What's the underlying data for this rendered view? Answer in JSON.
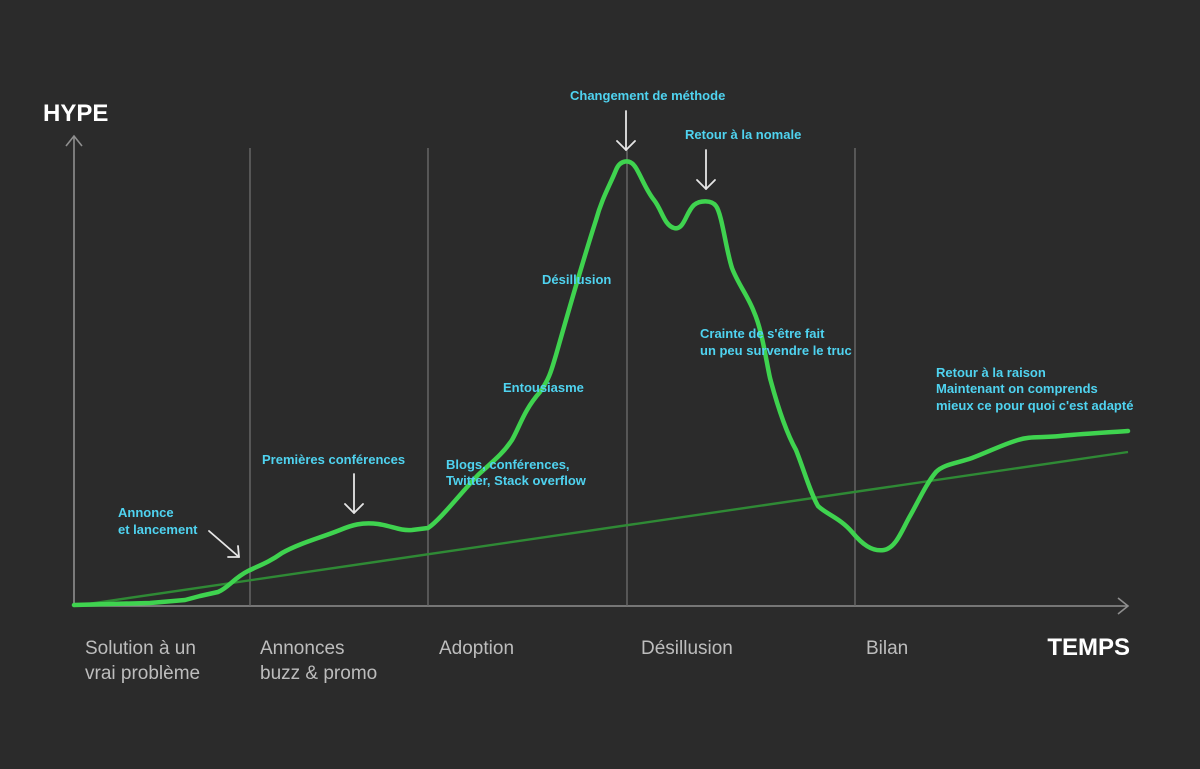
{
  "axes": {
    "y_title": "HYPE",
    "x_title": "TEMPS"
  },
  "phases": [
    {
      "lines": [
        "Solution à un",
        "vrai problème"
      ]
    },
    {
      "lines": [
        "Annonces",
        "buzz & promo"
      ]
    },
    {
      "lines": [
        "Adoption"
      ]
    },
    {
      "lines": [
        "Désillusion"
      ]
    },
    {
      "lines": [
        "Bilan"
      ]
    }
  ],
  "annotations": {
    "annonce": [
      "Annonce",
      "et lancement"
    ],
    "conferences": [
      "Premières conférences"
    ],
    "blogs": [
      "Blogs, conférences,",
      "Twitter, Stack overflow"
    ],
    "entousiasme": [
      "Entousiasme"
    ],
    "desillusion": [
      "Désillusion"
    ],
    "changement": [
      "Changement de méthode"
    ],
    "normale": [
      "Retour à la nomale"
    ],
    "crainte": [
      "Crainte de s'être fait",
      "un peu survendre le truc"
    ],
    "raison": [
      "Retour à la raison",
      "Maintenant on comprends",
      "mieux ce pour quoi c'est adapté"
    ]
  },
  "colors": {
    "background": "#2b2b2b",
    "hype_curve": "#3fd34f",
    "trend_line": "#2f8a35",
    "annotation": "#4fd3f0",
    "axis_title": "#ffffff",
    "phase_label": "#bdbdbd"
  }
}
